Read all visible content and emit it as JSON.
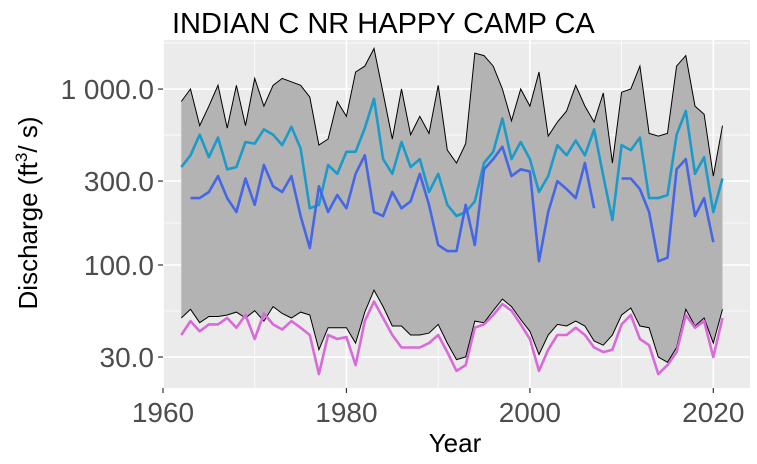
{
  "chart_data": {
    "type": "line",
    "title": "INDIAN C NR HAPPY CAMP CA",
    "xlabel": "Year",
    "ylabel": {
      "prefix": "Discharge (ft",
      "superscript": "3",
      "suffix": "/ s)"
    },
    "y_scale": "log",
    "xlim": [
      1960,
      2024
    ],
    "ylim": [
      20,
      1900
    ],
    "x_ticks": [
      1960,
      1980,
      2000,
      2020
    ],
    "x_tick_labels": [
      "1960",
      "1980",
      "2000",
      "2020"
    ],
    "y_ticks": [
      30,
      100,
      300,
      1000
    ],
    "y_tick_labels": [
      "30.0",
      "100.0",
      "300.0",
      "1 000.0"
    ],
    "grid": true,
    "legend": "none",
    "colors": {
      "panel": "#ebebeb",
      "grid": "#ffffff",
      "band": "#b3b3b3",
      "band_outline": "#000000",
      "series_1": "#1c9ac9",
      "series_2": "#4567e6",
      "series_3": "#d96ad9"
    },
    "band": {
      "x": [
        1962,
        1963,
        1964,
        1965,
        1966,
        1967,
        1968,
        1969,
        1970,
        1971,
        1972,
        1973,
        1974,
        1975,
        1976,
        1977,
        1978,
        1979,
        1980,
        1981,
        1982,
        1983,
        1984,
        1985,
        1986,
        1987,
        1988,
        1989,
        1990,
        1991,
        1992,
        1993,
        1994,
        1995,
        1996,
        1997,
        1998,
        1999,
        2000,
        2001,
        2002,
        2003,
        2004,
        2005,
        2006,
        2007,
        2008,
        2009,
        2010,
        2011,
        2012,
        2013,
        2014,
        2015,
        2016,
        2017,
        2018,
        2019,
        2020,
        2021
      ],
      "upper": [
        850,
        1000,
        620,
        800,
        1050,
        600,
        1050,
        620,
        1150,
        800,
        1050,
        1150,
        1100,
        1050,
        900,
        480,
        520,
        850,
        700,
        1250,
        1350,
        1700,
        950,
        520,
        1000,
        550,
        700,
        560,
        1050,
        450,
        380,
        490,
        1600,
        1550,
        1350,
        1000,
        660,
        1000,
        800,
        1250,
        540,
        650,
        750,
        1050,
        800,
        650,
        950,
        380,
        960,
        1000,
        1350,
        560,
        540,
        560,
        1350,
        1550,
        800,
        720,
        320,
        620
      ],
      "lower": [
        50,
        56,
        47,
        51,
        51,
        52,
        54,
        50,
        55,
        48,
        58,
        53,
        50,
        54,
        52,
        33,
        44,
        44,
        44,
        36,
        54,
        72,
        58,
        45,
        45,
        40,
        40,
        41,
        46,
        36,
        29,
        30,
        48,
        47,
        55,
        64,
        58,
        49,
        42,
        31,
        40,
        46,
        45,
        48,
        45,
        37,
        35,
        40,
        52,
        57,
        45,
        44,
        30,
        28,
        34,
        56,
        45,
        50,
        36,
        56
      ]
    },
    "series": [
      {
        "x": [
          1962,
          1963,
          1964,
          1965,
          1966,
          1967,
          1968,
          1969,
          1970,
          1971,
          1972,
          1973,
          1974,
          1975,
          1976,
          1977,
          1978,
          1979,
          1980,
          1981,
          1982,
          1983,
          1984,
          1985,
          1986,
          1987,
          1988,
          1989,
          1990,
          1991,
          1992,
          1993,
          1994,
          1995,
          1996,
          1997,
          1998,
          1999,
          2000,
          2001,
          2002,
          2003,
          2004,
          2005,
          2006,
          2007,
          2008,
          2009,
          2010,
          2011,
          2012,
          2013,
          2014,
          2015,
          2016,
          2017,
          2018,
          2019,
          2020,
          2021
        ],
        "values": [
          360,
          420,
          550,
          410,
          530,
          350,
          360,
          500,
          490,
          590,
          550,
          480,
          610,
          460,
          210,
          220,
          370,
          330,
          440,
          440,
          600,
          880,
          400,
          330,
          500,
          360,
          400,
          260,
          330,
          220,
          190,
          200,
          230,
          380,
          440,
          680,
          400,
          500,
          400,
          260,
          320,
          480,
          420,
          510,
          420,
          590,
          320,
          180,
          480,
          450,
          530,
          240,
          240,
          250,
          550,
          750,
          330,
          410,
          200,
          310
        ]
      },
      {
        "x": [
          1963,
          1964,
          1965,
          1966,
          1967,
          1968,
          1969,
          1970,
          1971,
          1972,
          1973,
          1974,
          1975,
          1976,
          1977,
          1978,
          1979,
          1980,
          1981,
          1982,
          1983,
          1984,
          1985,
          1986,
          1987,
          1988,
          1989,
          1990,
          1991,
          1992,
          1993,
          1994,
          1995,
          1996,
          1997,
          1998,
          1999,
          2000,
          2001,
          2002,
          2003,
          2004,
          2005,
          2006,
          2007
        ],
        "values": [
          240,
          240,
          260,
          320,
          240,
          200,
          310,
          220,
          370,
          280,
          260,
          320,
          190,
          125,
          280,
          200,
          250,
          210,
          330,
          420,
          200,
          190,
          260,
          210,
          230,
          330,
          220,
          130,
          120,
          120,
          220,
          130,
          350,
          400,
          470,
          320,
          350,
          340,
          105,
          200,
          300,
          270,
          240,
          380,
          210
        ]
      },
      {
        "x": [
          2010,
          2011,
          2012,
          2013,
          2014,
          2015,
          2016,
          2017,
          2018,
          2019,
          2020
        ],
        "values": [
          310,
          310,
          270,
          200,
          105,
          110,
          350,
          400,
          190,
          240,
          135
        ]
      },
      {
        "x": [
          1962,
          1963,
          1964,
          1965,
          1966,
          1967,
          1968,
          1969,
          1970,
          1971,
          1972,
          1973,
          1974,
          1975,
          1976,
          1977,
          1978,
          1979,
          1980,
          1981,
          1982,
          1983,
          1984,
          1985,
          1986,
          1987,
          1988,
          1989,
          1990,
          1991,
          1992,
          1993,
          1994,
          1995,
          1996,
          1997,
          1998,
          1999,
          2000,
          2001,
          2002,
          2003,
          2004,
          2005,
          2006,
          2007,
          2008,
          2009,
          2010,
          2011,
          2012,
          2013,
          2014,
          2015,
          2016,
          2017,
          2018,
          2019,
          2020,
          2021
        ],
        "values": [
          40,
          48,
          42,
          46,
          46,
          50,
          44,
          52,
          38,
          53,
          46,
          43,
          48,
          44,
          40,
          24,
          40,
          38,
          39,
          27,
          48,
          62,
          50,
          40,
          34,
          34,
          34,
          36,
          40,
          32,
          25,
          27,
          44,
          46,
          52,
          60,
          55,
          46,
          38,
          25,
          33,
          40,
          40,
          44,
          40,
          34,
          32,
          33,
          46,
          52,
          38,
          35,
          24,
          27,
          32,
          52,
          44,
          48,
          30,
          50
        ]
      }
    ]
  }
}
